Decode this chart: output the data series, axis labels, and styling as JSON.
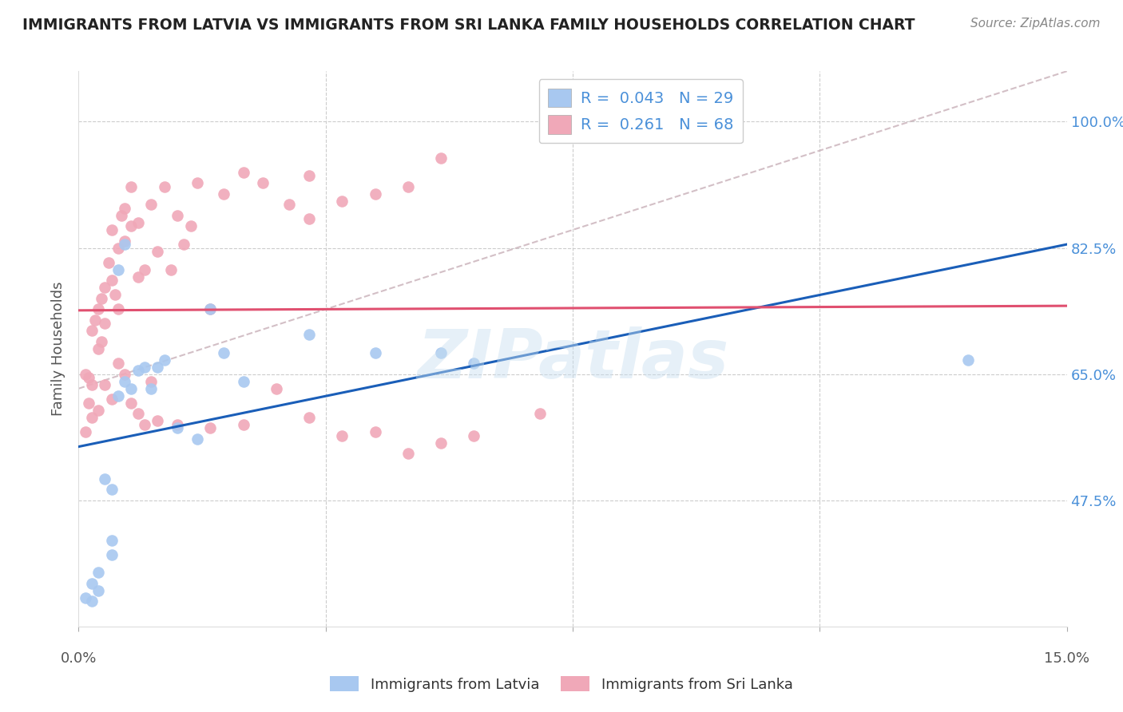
{
  "title": "IMMIGRANTS FROM LATVIA VS IMMIGRANTS FROM SRI LANKA FAMILY HOUSEHOLDS CORRELATION CHART",
  "source": "Source: ZipAtlas.com",
  "ylabel": "Family Households",
  "yticks": [
    47.5,
    65.0,
    82.5,
    100.0
  ],
  "ytick_labels": [
    "47.5%",
    "65.0%",
    "82.5%",
    "100.0%"
  ],
  "xlim": [
    0.0,
    15.0
  ],
  "ylim": [
    30.0,
    107.0
  ],
  "legend_latvia_R": "0.043",
  "legend_latvia_N": "29",
  "legend_srilanka_R": "0.261",
  "legend_srilanka_N": "68",
  "latvia_color": "#a8c8f0",
  "srilanka_color": "#f0a8b8",
  "latvia_line_color": "#1a5eb8",
  "srilanka_line_color": "#e05070",
  "diagonal_color": "#c8b0b8",
  "watermark": "ZIPatlas",
  "latvia_x": [
    0.2,
    0.3,
    0.5,
    0.5,
    0.6,
    0.7,
    0.8,
    0.9,
    1.0,
    1.1,
    1.2,
    1.3,
    1.5,
    1.8,
    2.0,
    2.2,
    2.5,
    3.5,
    5.5,
    6.0,
    13.5,
    0.1,
    0.2,
    0.3,
    0.4,
    0.5,
    0.6,
    0.7,
    4.5
  ],
  "latvia_y": [
    36.0,
    37.5,
    40.0,
    42.0,
    62.0,
    64.0,
    63.0,
    65.5,
    66.0,
    63.0,
    66.0,
    67.0,
    57.5,
    56.0,
    74.0,
    68.0,
    64.0,
    70.5,
    68.0,
    66.5,
    67.0,
    34.0,
    33.5,
    35.0,
    50.5,
    49.0,
    79.5,
    83.0,
    68.0
  ],
  "srilanka_x": [
    0.1,
    0.15,
    0.2,
    0.2,
    0.25,
    0.3,
    0.3,
    0.35,
    0.35,
    0.4,
    0.4,
    0.45,
    0.5,
    0.5,
    0.55,
    0.6,
    0.6,
    0.65,
    0.7,
    0.7,
    0.8,
    0.8,
    0.9,
    0.9,
    1.0,
    1.1,
    1.2,
    1.3,
    1.4,
    1.5,
    1.6,
    1.7,
    1.8,
    2.0,
    2.2,
    2.5,
    2.8,
    3.2,
    3.5,
    3.5,
    4.0,
    4.5,
    5.0,
    5.5,
    0.1,
    0.15,
    0.2,
    0.3,
    0.4,
    0.5,
    0.6,
    0.7,
    0.8,
    0.9,
    1.0,
    1.1,
    1.2,
    1.5,
    2.0,
    2.5,
    3.0,
    3.5,
    4.0,
    4.5,
    5.0,
    5.5,
    6.0,
    7.0
  ],
  "srilanka_y": [
    65.0,
    64.5,
    63.5,
    71.0,
    72.5,
    68.5,
    74.0,
    69.5,
    75.5,
    77.0,
    72.0,
    80.5,
    78.0,
    85.0,
    76.0,
    82.5,
    74.0,
    87.0,
    88.0,
    83.5,
    85.5,
    91.0,
    78.5,
    86.0,
    79.5,
    88.5,
    82.0,
    91.0,
    79.5,
    87.0,
    83.0,
    85.5,
    91.5,
    74.0,
    90.0,
    93.0,
    91.5,
    88.5,
    86.5,
    92.5,
    89.0,
    90.0,
    91.0,
    95.0,
    57.0,
    61.0,
    59.0,
    60.0,
    63.5,
    61.5,
    66.5,
    65.0,
    61.0,
    59.5,
    58.0,
    64.0,
    58.5,
    58.0,
    57.5,
    58.0,
    63.0,
    59.0,
    56.5,
    57.0,
    54.0,
    55.5,
    56.5,
    59.5
  ]
}
